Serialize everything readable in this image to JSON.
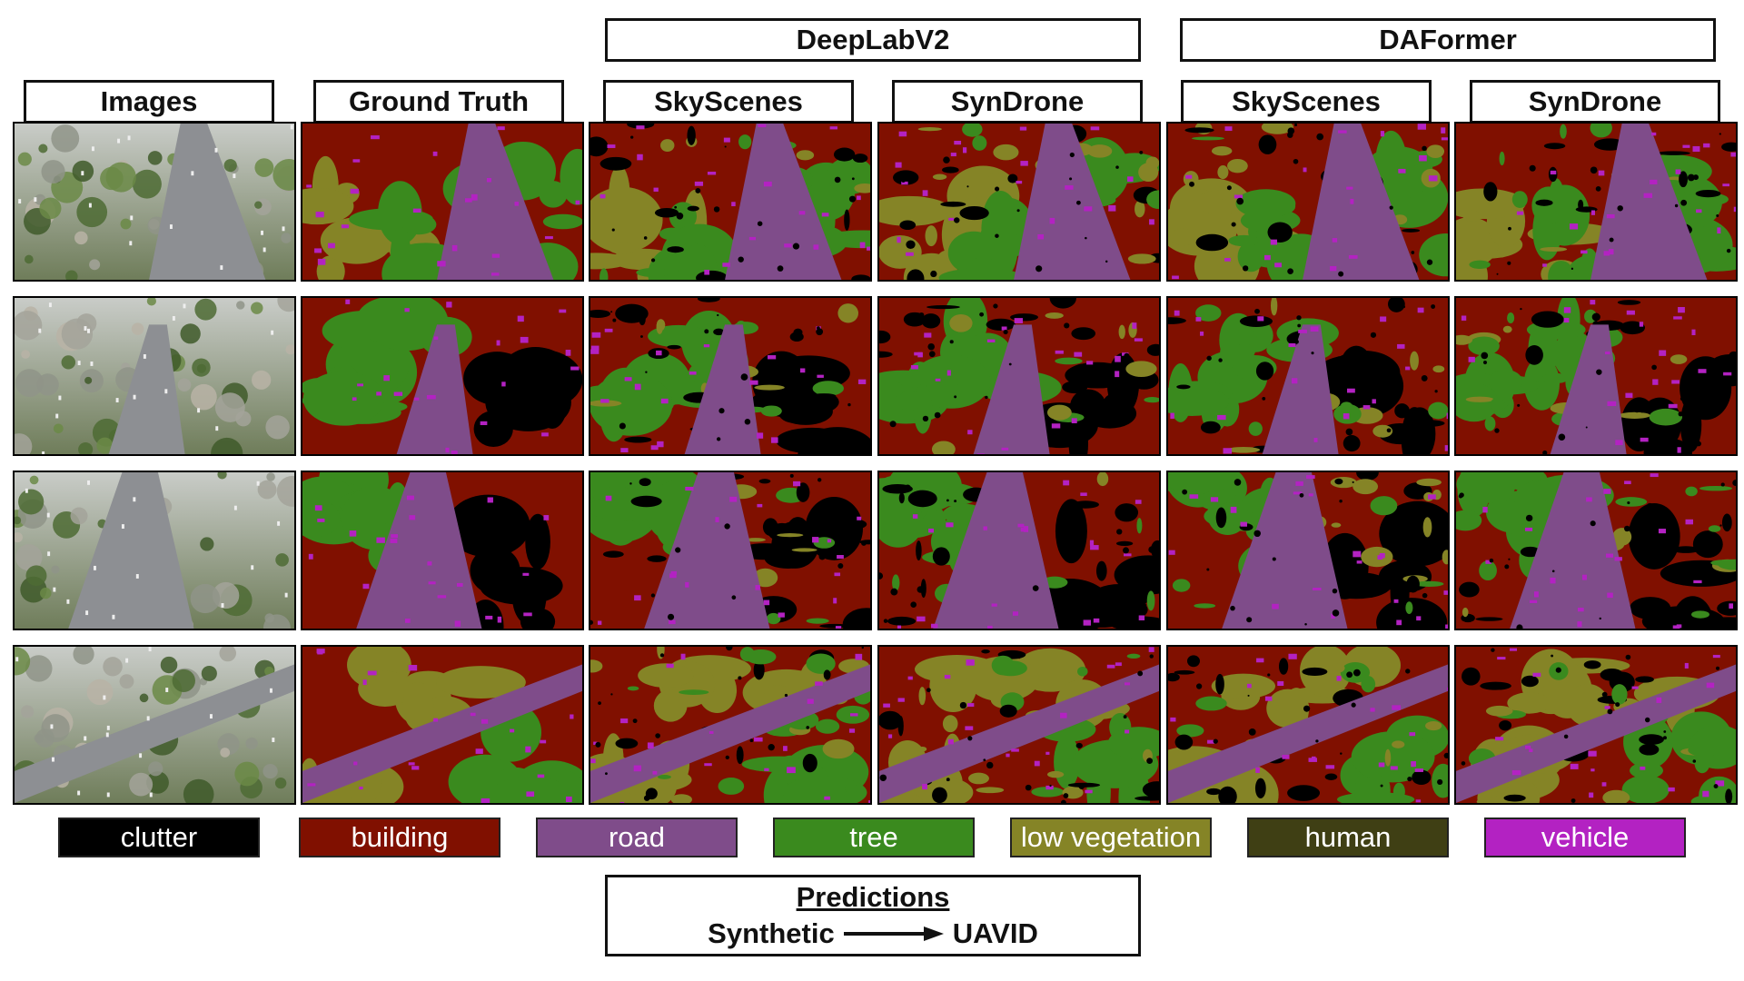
{
  "headers": {
    "group1": "DeepLabV2",
    "group2": "DAFormer",
    "columns": [
      "Images",
      "Ground Truth",
      "SkyScenes",
      "SynDrone",
      "SkyScenes",
      "SynDrone"
    ]
  },
  "legend": [
    {
      "label": "clutter",
      "color": "#000000",
      "text_color": "#ffffff"
    },
    {
      "label": "building",
      "color": "#801000",
      "text_color": "#ffffff"
    },
    {
      "label": "road",
      "color": "#7f4c8a",
      "text_color": "#ffffff"
    },
    {
      "label": "tree",
      "color": "#3a8a1e",
      "text_color": "#ffffff"
    },
    {
      "label": "low vegetation",
      "color": "#858426",
      "text_color": "#ffffff"
    },
    {
      "label": "human",
      "color": "#3f3f14",
      "text_color": "#ffffff"
    },
    {
      "label": "vehicle",
      "color": "#b322c2",
      "text_color": "#ffffff"
    }
  ],
  "footer": {
    "title": "Predictions",
    "source": "Synthetic",
    "target": "UAVID"
  }
}
